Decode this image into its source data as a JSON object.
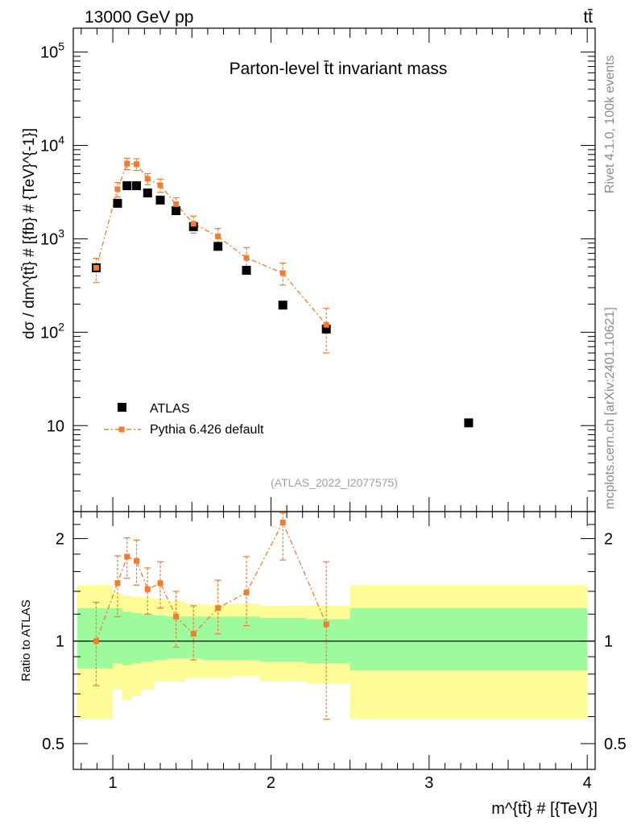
{
  "header": {
    "energy_label": "13000 GeV pp",
    "process_label": "tt̄"
  },
  "side": {
    "rivet_label": "Rivet 4.1.0,  100k events",
    "mcplots_label": "mcplots.cern.ch [arXiv:2401.10621]"
  },
  "chart_data": [
    {
      "type": "scatter",
      "title": "Parton-level t̄t invariant mass",
      "ylabel": "dσ / dm^{tt̄} # [{fb} # {TeV}^{-1}]",
      "yscale": "log",
      "ylim": [
        1.2,
        180000
      ],
      "xlim": [
        0.75,
        4.05
      ],
      "analysis_label": "(ATLAS_2022_I2077575)",
      "legend_position": "bottom-left",
      "series": [
        {
          "name": "ATLAS",
          "x": [
            0.895,
            1.03,
            1.09,
            1.15,
            1.22,
            1.3,
            1.4,
            1.51,
            1.665,
            1.845,
            2.075,
            2.35,
            3.25
          ],
          "y": [
            490,
            2400,
            3700,
            3700,
            3100,
            2600,
            2000,
            1350,
            830,
            460,
            195,
            108,
            10.7
          ]
        },
        {
          "name": "Pythia 6.426 default",
          "x": [
            0.895,
            1.03,
            1.09,
            1.15,
            1.22,
            1.3,
            1.4,
            1.51,
            1.665,
            1.845,
            2.075,
            2.35
          ],
          "y": [
            490,
            3400,
            6400,
            6300,
            4400,
            3750,
            2350,
            1450,
            1060,
            625,
            430,
            120
          ],
          "err_up": [
            130,
            600,
            900,
            900,
            600,
            600,
            400,
            300,
            230,
            180,
            120,
            60
          ],
          "err_dn": [
            150,
            600,
            900,
            900,
            600,
            600,
            400,
            300,
            230,
            160,
            110,
            60
          ]
        }
      ],
      "yticks": [
        {
          "label": "10",
          "exp": "",
          "value": 10
        },
        {
          "label": "10",
          "exp": "2",
          "value": 100
        },
        {
          "label": "10",
          "exp": "3",
          "value": 1000
        },
        {
          "label": "10",
          "exp": "4",
          "value": 10000
        },
        {
          "label": "10",
          "exp": "5",
          "value": 100000
        }
      ]
    },
    {
      "type": "scatter",
      "ylabel": "Ratio to ATLAS",
      "xlabel": "m^{tt̄} # [{TeV}]",
      "yscale": "log",
      "ylim": [
        0.42,
        2.4
      ],
      "xlim": [
        0.75,
        4.05
      ],
      "xticks": [
        "1",
        "2",
        "3",
        "4"
      ],
      "yticks": [
        "0.5",
        "1",
        "2"
      ],
      "bin_edges": [
        0.775,
        1.0,
        1.06,
        1.12,
        1.18,
        1.26,
        1.34,
        1.46,
        1.56,
        1.76,
        1.93,
        2.22,
        2.5,
        4.0
      ],
      "band_inner_up": [
        1.25,
        1.25,
        1.22,
        1.21,
        1.2,
        1.19,
        1.18,
        1.18,
        1.18,
        1.18,
        1.17,
        1.16,
        1.25
      ],
      "band_inner_dn": [
        0.83,
        0.86,
        0.85,
        0.86,
        0.87,
        0.88,
        0.89,
        0.89,
        0.88,
        0.88,
        0.87,
        0.86,
        0.82
      ],
      "band_outer_up": [
        1.46,
        1.38,
        1.36,
        1.35,
        1.34,
        1.33,
        1.31,
        1.29,
        1.28,
        1.29,
        1.27,
        1.27,
        1.46
      ],
      "band_outer_dn": [
        0.59,
        0.72,
        0.67,
        0.69,
        0.72,
        0.76,
        0.76,
        0.78,
        0.78,
        0.79,
        0.76,
        0.75,
        0.59
      ],
      "series": [
        {
          "name": "Pythia 6.426 default",
          "x": [
            0.895,
            1.03,
            1.09,
            1.15,
            1.22,
            1.3,
            1.4,
            1.51,
            1.665,
            1.845,
            2.075,
            2.35
          ],
          "y": [
            1.0,
            1.48,
            1.77,
            1.72,
            1.42,
            1.48,
            1.18,
            1.05,
            1.25,
            1.39,
            2.23,
            1.12
          ],
          "err_up": [
            0.3,
            0.3,
            0.24,
            0.26,
            0.22,
            0.23,
            0.22,
            0.22,
            0.26,
            0.38,
            0.15,
            0.59
          ],
          "err_dn": [
            0.26,
            0.3,
            0.24,
            0.26,
            0.22,
            0.23,
            0.22,
            0.17,
            0.2,
            0.28,
            0.5,
            0.53
          ]
        }
      ]
    }
  ],
  "colors": {
    "data": "#000000",
    "mc": "#f27b2c",
    "band_inner": "#9dfb9d",
    "band_outer": "#fdfc97",
    "analysis_label": "#a0a0a0",
    "side_label": "#8a8a8a"
  }
}
